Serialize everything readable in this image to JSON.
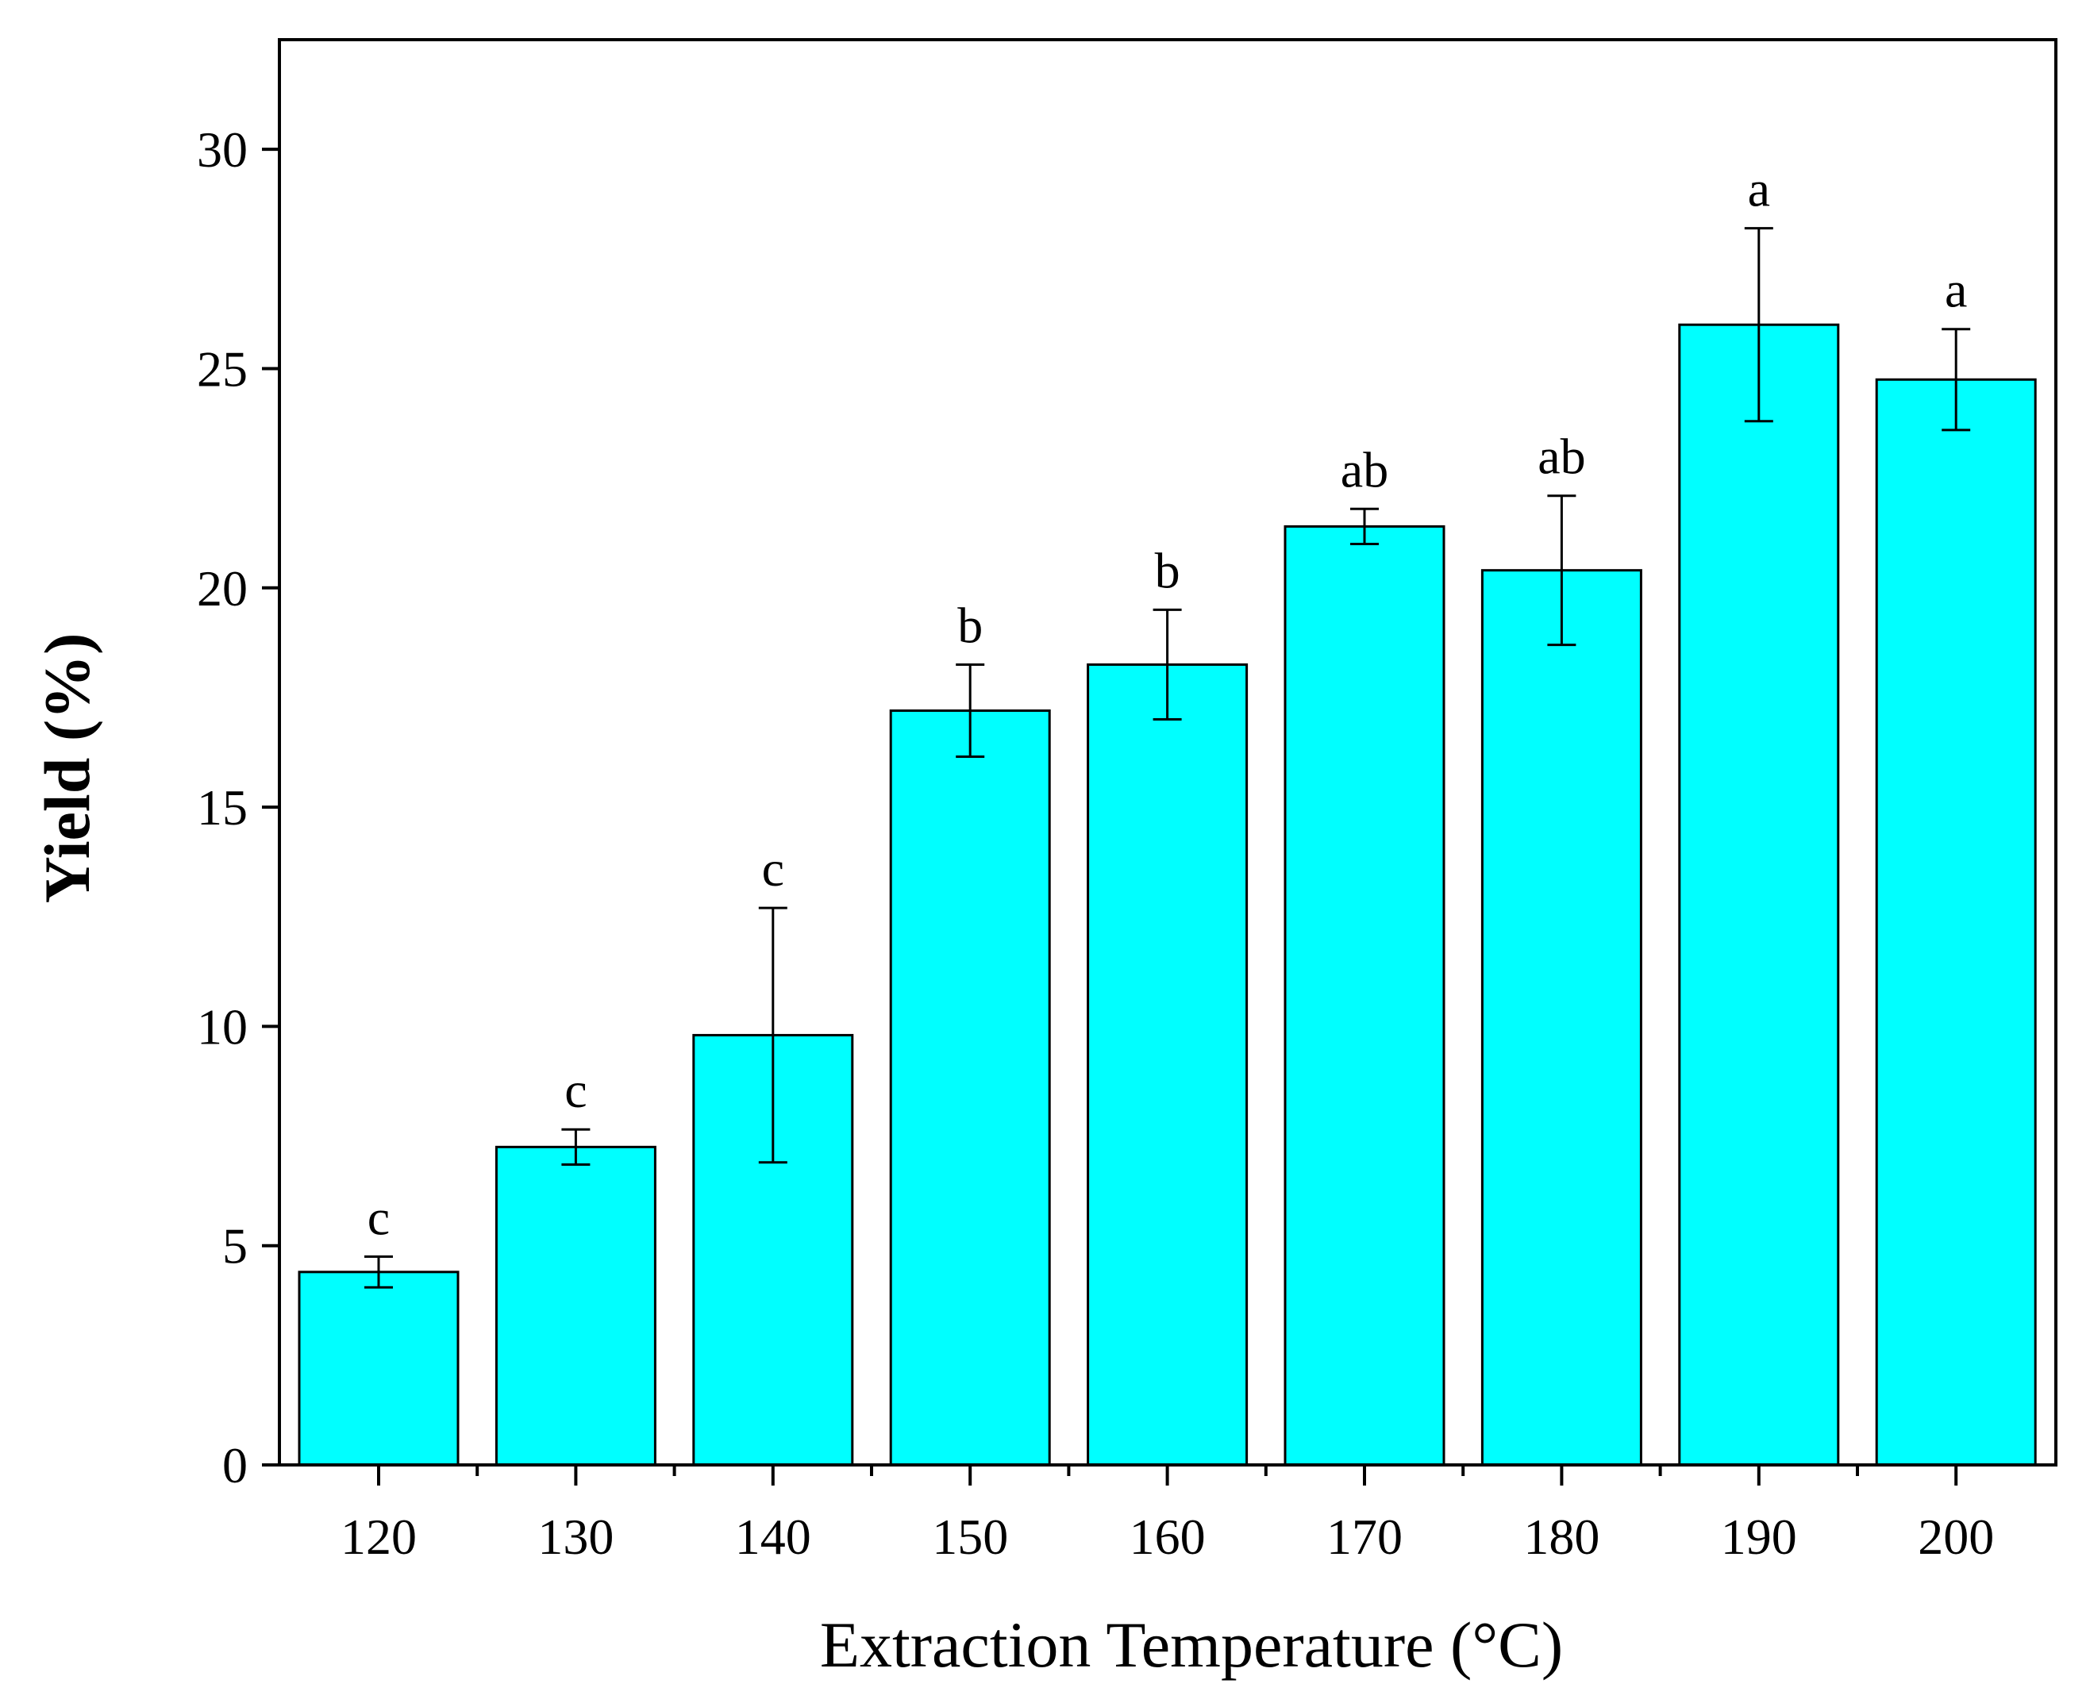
{
  "chart_data": {
    "type": "bar",
    "title": "",
    "xlabel": "Extraction Temperature (°C)",
    "ylabel": "Yield (%)",
    "ylim": [
      0,
      32.5
    ],
    "yticks": [
      0,
      5,
      10,
      15,
      20,
      25,
      30
    ],
    "ytick_labels": [
      "0",
      "5",
      "10",
      "15",
      "20",
      "25",
      "30"
    ],
    "categories": [
      "120",
      "130",
      "140",
      "150",
      "160",
      "170",
      "180",
      "190",
      "200"
    ],
    "values": [
      4.4,
      7.25,
      9.8,
      17.2,
      18.25,
      21.4,
      20.4,
      26.0,
      24.75
    ],
    "errors": [
      0.35,
      0.4,
      2.9,
      1.05,
      1.25,
      0.4,
      1.7,
      2.2,
      1.15
    ],
    "significance": [
      "c",
      "c",
      "c",
      "b",
      "b",
      "ab",
      "ab",
      "a",
      "a"
    ],
    "bar_color": "#00FFFF",
    "grid": false
  }
}
